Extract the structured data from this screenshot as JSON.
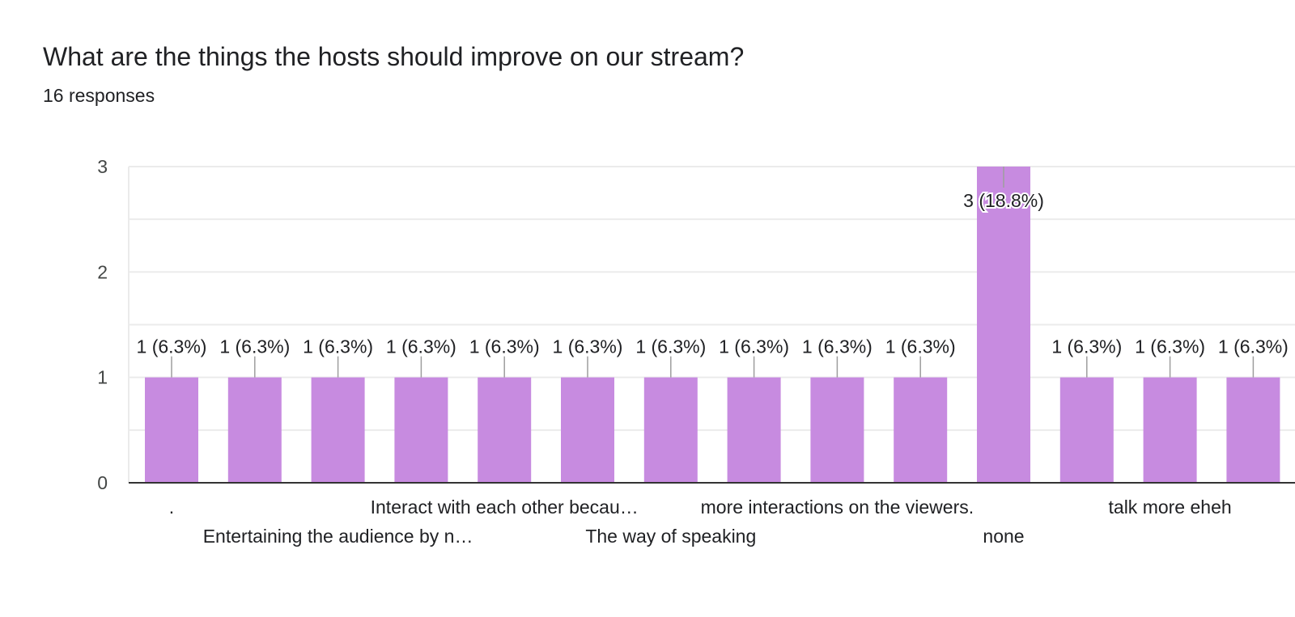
{
  "question": {
    "title": "What are the things the hosts should improve on our stream?",
    "responses": "16 responses"
  },
  "colors": {
    "bar": "#c78be0",
    "grid": "#ebebeb",
    "axis": "#333333",
    "leader": "#9e9e9e"
  },
  "chart_data": {
    "type": "bar",
    "yticks": [
      "0",
      "1",
      "2",
      "3"
    ],
    "ylim": [
      0,
      3
    ],
    "categories": [
      ".",
      "",
      "Entertaining the audience by n…",
      "",
      "Interact with each other becau…",
      "",
      "The way of speaking",
      "",
      "more interactions on the viewers.",
      "",
      "none",
      "",
      "talk more eheh",
      ""
    ],
    "values": [
      1,
      1,
      1,
      1,
      1,
      1,
      1,
      1,
      1,
      1,
      3,
      1,
      1,
      1
    ],
    "data_labels": [
      "1 (6.3%)",
      "1 (6.3%)",
      "1 (6.3%)",
      "1 (6.3%)",
      "1 (6.3%)",
      "1 (6.3%)",
      "1 (6.3%)",
      "1 (6.3%)",
      "1 (6.3%)",
      "1 (6.3%)",
      "3 (18.8%)",
      "1 (6.3%)",
      "1 (6.3%)",
      "1 (6.3%)"
    ]
  }
}
